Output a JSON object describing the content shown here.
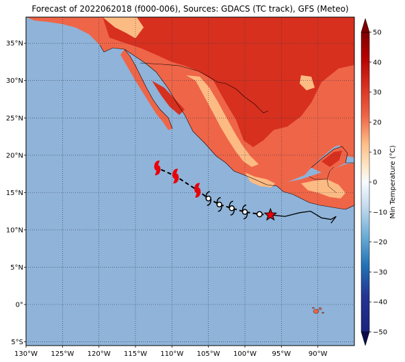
{
  "title": "Forecast of 2022062018 (f000-006), Sources: GDACS (TC track), GFS (Meteo)",
  "map": {
    "lon_range": [
      -130,
      -85
    ],
    "lat_range": [
      -5.5,
      38.5
    ],
    "lat_ticks": [
      {
        "value": 35,
        "label": "35°N"
      },
      {
        "value": 30,
        "label": "30°N"
      },
      {
        "value": 25,
        "label": "25°N"
      },
      {
        "value": 20,
        "label": "20°N"
      },
      {
        "value": 15,
        "label": "15°N"
      },
      {
        "value": 10,
        "label": "10°N"
      },
      {
        "value": 5,
        "label": "5°N"
      },
      {
        "value": 0,
        "label": "0°"
      },
      {
        "value": -5,
        "label": "5°S"
      }
    ],
    "lon_ticks": [
      {
        "value": -130,
        "label": "130°W"
      },
      {
        "value": -125,
        "label": "125°W"
      },
      {
        "value": -120,
        "label": "120°W"
      },
      {
        "value": -115,
        "label": "115°W"
      },
      {
        "value": -110,
        "label": "110°W"
      },
      {
        "value": -105,
        "label": "105°W"
      },
      {
        "value": -100,
        "label": "100°W"
      },
      {
        "value": -95,
        "label": "95°W"
      },
      {
        "value": -90,
        "label": "90°W"
      }
    ],
    "ocean_color": "#8fb3d9",
    "grid": "dotted"
  },
  "track": {
    "current_position": {
      "lon": -96.5,
      "lat": 12.0
    },
    "past_track": [
      {
        "lon": -96.5,
        "lat": 12.0
      },
      {
        "lon": -95.5,
        "lat": 11.9
      },
      {
        "lon": -94.5,
        "lat": 11.8
      },
      {
        "lon": -92.5,
        "lat": 12.3
      },
      {
        "lon": -91.0,
        "lat": 12.5
      },
      {
        "lon": -90.5,
        "lat": 12.2
      },
      {
        "lon": -89.5,
        "lat": 11.6
      },
      {
        "lon": -88.2,
        "lat": 11.4
      },
      {
        "lon": -87.5,
        "lat": 11.8
      },
      {
        "lon": -88.2,
        "lat": 10.9
      }
    ],
    "forecast_points": [
      {
        "lon": -98.0,
        "lat": 12.1,
        "category": "depression",
        "color": "#000000"
      },
      {
        "lon": -100.0,
        "lat": 12.4,
        "category": "storm",
        "color": "#000000"
      },
      {
        "lon": -101.8,
        "lat": 12.9,
        "category": "storm",
        "color": "#000000"
      },
      {
        "lon": -103.5,
        "lat": 13.4,
        "category": "storm",
        "color": "#000000"
      },
      {
        "lon": -105.0,
        "lat": 14.2,
        "category": "storm",
        "color": "#000000"
      },
      {
        "lon": -106.5,
        "lat": 15.3,
        "category": "hurricane",
        "color": "#e8000b"
      },
      {
        "lon": -109.5,
        "lat": 17.2,
        "category": "hurricane",
        "color": "#e8000b"
      },
      {
        "lon": -112.0,
        "lat": 18.3,
        "category": "hurricane",
        "color": "#e8000b"
      }
    ]
  },
  "colorbar": {
    "label": "Min Temperature (°C)",
    "ticks": [
      "50",
      "40",
      "30",
      "20",
      "10",
      "0",
      "−10",
      "−20",
      "−30",
      "−40",
      "−50"
    ],
    "colors": [
      "#7f0000",
      "#b30000",
      "#d7301f",
      "#ef6548",
      "#fc8d59",
      "#fdbb84",
      "#fdd49e",
      "#fee8c8",
      "#f7fbff",
      "#deebf7",
      "#c6dbef",
      "#9ecae1",
      "#6baed6",
      "#4292c6",
      "#2171b5",
      "#08519c",
      "#08306b",
      "#1a237e"
    ]
  }
}
